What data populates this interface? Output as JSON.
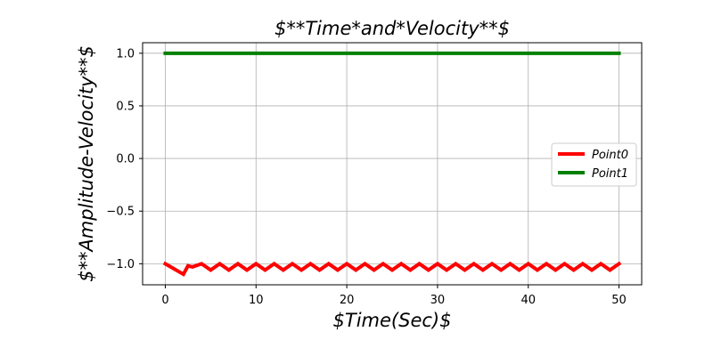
{
  "chart_data": {
    "type": "line",
    "title": "$**Time*and*Velocity**$",
    "xlabel": "$Time(Sec)$",
    "ylabel": "$**Amplitude-Velocity**$",
    "xlim": [
      -2.5,
      52.5
    ],
    "ylim": [
      -1.2,
      1.1
    ],
    "x_ticks": [
      0,
      10,
      20,
      30,
      40,
      50
    ],
    "x_tick_labels": [
      "0",
      "10",
      "20",
      "30",
      "40",
      "50"
    ],
    "y_ticks": [
      -1.0,
      -0.5,
      0.0,
      0.5,
      1.0
    ],
    "y_tick_labels": [
      "−1.0",
      "−0.5",
      "0.0",
      "0.5",
      "1.0"
    ],
    "grid": true,
    "legend_position": "center-right",
    "series": [
      {
        "name": "Point0",
        "legend_label": "Point0",
        "color": "#ff0000",
        "x": [
          0,
          1,
          2,
          2.5,
          3,
          4,
          5,
          6,
          7,
          8,
          9,
          10,
          11,
          12,
          13,
          14,
          15,
          16,
          17,
          18,
          19,
          20,
          21,
          22,
          23,
          24,
          25,
          26,
          27,
          28,
          29,
          30,
          31,
          32,
          33,
          34,
          35,
          36,
          37,
          38,
          39,
          40,
          41,
          42,
          43,
          44,
          45,
          46,
          47,
          48,
          49,
          50
        ],
        "y": [
          -1.0,
          -1.05,
          -1.1,
          -1.02,
          -1.03,
          -1.0,
          -1.06,
          -1.0,
          -1.06,
          -1.0,
          -1.06,
          -1.0,
          -1.06,
          -1.0,
          -1.06,
          -1.0,
          -1.06,
          -1.0,
          -1.06,
          -1.0,
          -1.06,
          -1.0,
          -1.06,
          -1.0,
          -1.06,
          -1.0,
          -1.06,
          -1.0,
          -1.06,
          -1.0,
          -1.06,
          -1.0,
          -1.06,
          -1.0,
          -1.06,
          -1.0,
          -1.06,
          -1.0,
          -1.06,
          -1.0,
          -1.06,
          -1.0,
          -1.06,
          -1.0,
          -1.06,
          -1.0,
          -1.06,
          -1.0,
          -1.06,
          -1.0,
          -1.06,
          -1.0
        ]
      },
      {
        "name": "Point1",
        "legend_label": "Point1",
        "color": "#008000",
        "x": [
          0,
          50
        ],
        "y": [
          1.0,
          1.0
        ]
      }
    ]
  }
}
